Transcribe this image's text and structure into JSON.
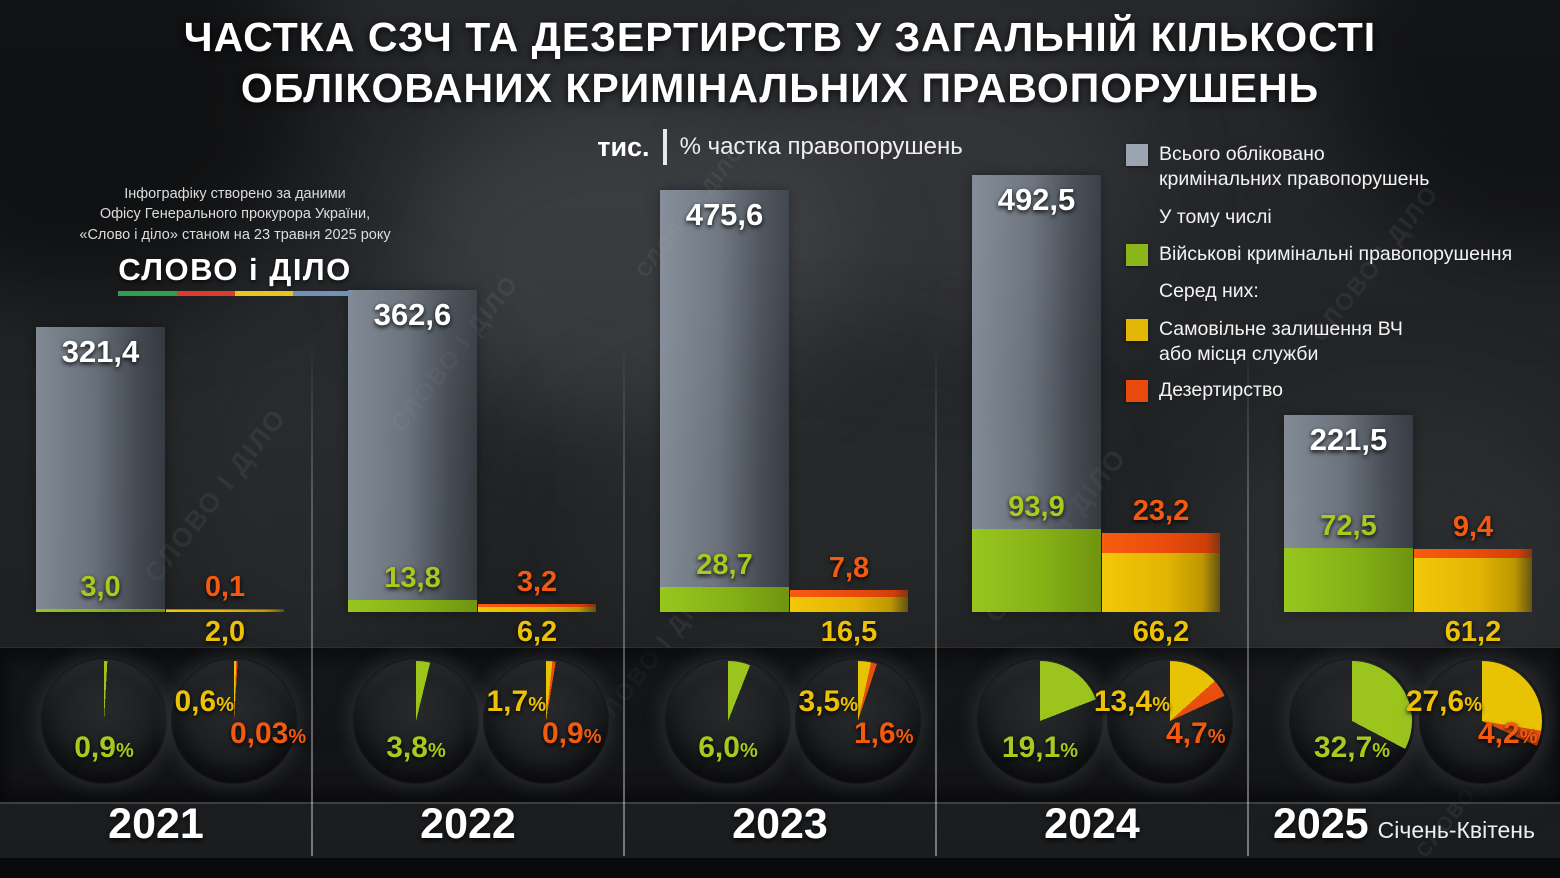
{
  "title": "ЧАСТКА СЗЧ ТА ДЕЗЕРТИРСТВ У ЗАГАЛЬНІЙ КІЛЬКОСТІ\nОБЛІКОВАНИХ КРИМІНАЛЬНИХ ПРАВОПОРУШЕНЬ",
  "subtitle": {
    "unit": "тис.",
    "note": "% частка правопорушень"
  },
  "source": {
    "text": "Інфографіку створено за даними\nОфісу Генерального прокурора України,\n«Слово і діло» станом на 23 травня 2025 року",
    "logo_text": "СЛОВО і ДІЛО",
    "logo_underline_colors": [
      "#2f9e4e",
      "#e03a2f",
      "#e9c51e",
      "#7290b8"
    ]
  },
  "watermark": "СЛОВО І ДІЛО",
  "legend": {
    "items": [
      {
        "color": "#9aa5b1",
        "label": "Всього обліковано\nкримінальних правопорушень",
        "subhead": false
      },
      {
        "color": null,
        "label": "У тому числі",
        "subhead": true
      },
      {
        "color": "#8ab51b",
        "label": "Військові кримінальні правопорушення",
        "subhead": false
      },
      {
        "color": null,
        "label": "Серед них:",
        "subhead": true
      },
      {
        "color": "#e2b708",
        "label": "Самовільне залишення ВЧ\nабо місця служби",
        "subhead": false
      },
      {
        "color": "#e8490c",
        "label": "Дезертирство",
        "subhead": false
      }
    ]
  },
  "colors": {
    "total_bar": "#9aa5b1",
    "military": "#8ab51b",
    "szch": "#e2b708",
    "desertion": "#e8490c",
    "pie_green": "#9bc41d",
    "pie_yellow": "#e8c303",
    "pie_orange": "#e84f0e"
  },
  "years": [
    {
      "label": "2021",
      "suffix": "",
      "total": "321,4",
      "military": "3,0",
      "szch": "2,0",
      "desertion": "0,1",
      "pie_military": "0,9",
      "pie_szch": "0,6",
      "pie_desertion": "0,03"
    },
    {
      "label": "2022",
      "suffix": "",
      "total": "362,6",
      "military": "13,8",
      "szch": "6,2",
      "desertion": "3,2",
      "pie_military": "3,8",
      "pie_szch": "1,7",
      "pie_desertion": "0,9"
    },
    {
      "label": "2023",
      "suffix": "",
      "total": "475,6",
      "military": "28,7",
      "szch": "16,5",
      "desertion": "7,8",
      "pie_military": "6,0",
      "pie_szch": "3,5",
      "pie_desertion": "1,6"
    },
    {
      "label": "2024",
      "suffix": "",
      "total": "492,5",
      "military": "93,9",
      "szch": "66,2",
      "desertion": "23,2",
      "pie_military": "19,1",
      "pie_szch": "13,4",
      "pie_desertion": "4,7"
    },
    {
      "label": "2025",
      "suffix": "Січень-Квітень",
      "total": "221,5",
      "military": "72,5",
      "szch": "61,2",
      "desertion": "9,4",
      "pie_military": "32,7",
      "pie_szch": "27,6",
      "pie_desertion": "4,2"
    }
  ],
  "chart_data": {
    "type": "bar",
    "title": "Частка СЗЧ та дезертирств у загальній кількості облікованих кримінальних правопорушень",
    "unit": "тис.",
    "categories": [
      "2021",
      "2022",
      "2023",
      "2024",
      "2025 (Січень-Квітень)"
    ],
    "series": [
      {
        "name": "Всього обліковано кримінальних правопорушень",
        "values": [
          321.4,
          362.6,
          475.6,
          492.5,
          221.5
        ]
      },
      {
        "name": "Військові кримінальні правопорушення",
        "values": [
          3.0,
          13.8,
          28.7,
          93.9,
          72.5
        ]
      },
      {
        "name": "Самовільне залишення ВЧ або місця служби",
        "values": [
          2.0,
          6.2,
          16.5,
          66.2,
          61.2
        ]
      },
      {
        "name": "Дезертирство",
        "values": [
          0.1,
          3.2,
          7.8,
          23.2,
          9.4
        ]
      }
    ],
    "pie_percentages": {
      "military_share_of_total": [
        0.9,
        3.8,
        6.0,
        19.1,
        32.7
      ],
      "szch_share_of_total": [
        0.6,
        1.7,
        3.5,
        13.4,
        27.6
      ],
      "desertion_share_of_total": [
        0.03,
        0.9,
        1.6,
        4.7,
        4.2
      ]
    },
    "legend_position": "top-right",
    "grid": false,
    "ylim_thousands": [
      0,
      492.5
    ]
  }
}
